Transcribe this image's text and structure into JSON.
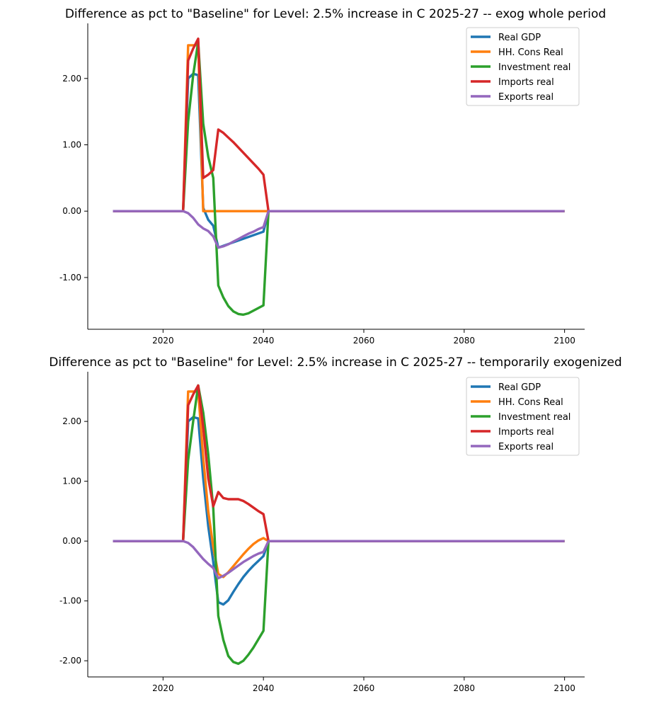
{
  "chart_data": [
    {
      "type": "line",
      "title": "Difference as pct to \"Baseline\" for Level: 2.5% increase in C 2025-27 -- exog whole period",
      "xlabel": "",
      "ylabel": "",
      "xlim": [
        2005,
        2104
      ],
      "ylim": [
        -1.78,
        2.83
      ],
      "xticks": [
        2020,
        2040,
        2060,
        2080,
        2100
      ],
      "yticks": [
        -1.0,
        0.0,
        1.0,
        2.0
      ],
      "ytick_labels": [
        "-1.00",
        "0.00",
        "1.00",
        "2.00"
      ],
      "legend_position": "top-right",
      "grid": false,
      "series": [
        {
          "name": "Real GDP",
          "color": "#1f77b4",
          "x": [
            2010,
            2024,
            2025,
            2026,
            2027,
            2028,
            2029,
            2030,
            2031,
            2040,
            2041,
            2100
          ],
          "y": [
            0,
            0,
            2.0,
            2.07,
            2.05,
            0.05,
            -0.13,
            -0.22,
            -0.55,
            -0.31,
            0,
            0
          ]
        },
        {
          "name": "HH. Cons Real",
          "color": "#ff7f0e",
          "x": [
            2010,
            2024,
            2025,
            2026,
            2027,
            2028,
            2100
          ],
          "y": [
            0,
            0,
            2.5,
            2.5,
            2.5,
            0,
            0
          ]
        },
        {
          "name": "Investment real",
          "color": "#2ca02c",
          "x": [
            2010,
            2024,
            2025,
            2026,
            2027,
            2028,
            2029,
            2030,
            2031,
            2032,
            2033,
            2034,
            2035,
            2036,
            2037,
            2038,
            2039,
            2040,
            2041,
            2100
          ],
          "y": [
            0,
            0,
            1.35,
            2.05,
            2.55,
            1.32,
            0.82,
            0.5,
            -1.12,
            -1.3,
            -1.43,
            -1.51,
            -1.55,
            -1.56,
            -1.54,
            -1.5,
            -1.46,
            -1.42,
            0,
            0
          ]
        },
        {
          "name": "Imports real",
          "color": "#d62728",
          "x": [
            2010,
            2024,
            2025,
            2026,
            2027,
            2028,
            2029,
            2030,
            2031,
            2032,
            2033,
            2034,
            2035,
            2036,
            2037,
            2038,
            2039,
            2040,
            2041,
            2100
          ],
          "y": [
            0,
            0,
            2.27,
            2.45,
            2.6,
            0.5,
            0.55,
            0.62,
            1.23,
            1.18,
            1.11,
            1.04,
            0.96,
            0.88,
            0.8,
            0.72,
            0.64,
            0.55,
            0,
            0
          ]
        },
        {
          "name": "Exports real",
          "color": "#9467bd",
          "x": [
            2010,
            2024,
            2025,
            2026,
            2027,
            2028,
            2029,
            2030,
            2031,
            2032,
            2033,
            2034,
            2035,
            2036,
            2037,
            2038,
            2039,
            2040,
            2041,
            2100
          ],
          "y": [
            0,
            0,
            -0.03,
            -0.1,
            -0.2,
            -0.26,
            -0.3,
            -0.38,
            -0.55,
            -0.53,
            -0.5,
            -0.46,
            -0.42,
            -0.38,
            -0.34,
            -0.31,
            -0.27,
            -0.24,
            0,
            0
          ]
        }
      ]
    },
    {
      "type": "line",
      "title": "Difference as pct to \"Baseline\" for Level: 2.5% increase in C 2025-27 -- temporarily exogenized",
      "xlabel": "",
      "ylabel": "",
      "xlim": [
        2005,
        2104
      ],
      "ylim": [
        -2.27,
        2.83
      ],
      "xticks": [
        2020,
        2040,
        2060,
        2080,
        2100
      ],
      "yticks": [
        -2.0,
        -1.0,
        0.0,
        1.0,
        2.0
      ],
      "ytick_labels": [
        "-2.00",
        "-1.00",
        "0.00",
        "1.00",
        "2.00"
      ],
      "legend_position": "top-right",
      "grid": false,
      "series": [
        {
          "name": "Real GDP",
          "color": "#1f77b4",
          "x": [
            2010,
            2024,
            2025,
            2026,
            2027,
            2028,
            2029,
            2030,
            2031,
            2032,
            2033,
            2034,
            2035,
            2036,
            2037,
            2038,
            2039,
            2040,
            2041,
            2100
          ],
          "y": [
            0,
            0,
            2.0,
            2.07,
            2.05,
            1.05,
            0.25,
            -0.35,
            -1.02,
            -1.06,
            -0.99,
            -0.85,
            -0.72,
            -0.6,
            -0.5,
            -0.41,
            -0.33,
            -0.25,
            0,
            0
          ]
        },
        {
          "name": "HH. Cons Real",
          "color": "#ff7f0e",
          "x": [
            2010,
            2024,
            2025,
            2026,
            2027,
            2028,
            2029,
            2030,
            2031,
            2032,
            2033,
            2034,
            2035,
            2036,
            2037,
            2038,
            2039,
            2040,
            2041,
            2100
          ],
          "y": [
            0,
            0,
            2.5,
            2.5,
            2.5,
            1.4,
            0.5,
            -0.1,
            -0.55,
            -0.6,
            -0.52,
            -0.42,
            -0.32,
            -0.22,
            -0.13,
            -0.05,
            0.01,
            0.05,
            0,
            0
          ]
        },
        {
          "name": "Investment real",
          "color": "#2ca02c",
          "x": [
            2010,
            2024,
            2025,
            2026,
            2027,
            2028,
            2029,
            2030,
            2031,
            2032,
            2033,
            2034,
            2035,
            2036,
            2037,
            2038,
            2039,
            2040,
            2041,
            2100
          ],
          "y": [
            0,
            0,
            1.35,
            2.0,
            2.6,
            2.15,
            1.45,
            0.55,
            -1.25,
            -1.65,
            -1.92,
            -2.02,
            -2.05,
            -2.0,
            -1.9,
            -1.78,
            -1.64,
            -1.5,
            0,
            0
          ]
        },
        {
          "name": "Imports real",
          "color": "#d62728",
          "x": [
            2010,
            2024,
            2025,
            2026,
            2027,
            2028,
            2029,
            2030,
            2031,
            2032,
            2033,
            2034,
            2035,
            2036,
            2037,
            2038,
            2039,
            2040,
            2041,
            2100
          ],
          "y": [
            0,
            0,
            2.27,
            2.45,
            2.6,
            1.9,
            1.05,
            0.58,
            0.82,
            0.72,
            0.7,
            0.7,
            0.7,
            0.67,
            0.62,
            0.56,
            0.5,
            0.45,
            0,
            0
          ]
        },
        {
          "name": "Exports real",
          "color": "#9467bd",
          "x": [
            2010,
            2024,
            2025,
            2026,
            2027,
            2028,
            2029,
            2030,
            2031,
            2032,
            2033,
            2034,
            2035,
            2036,
            2037,
            2038,
            2039,
            2040,
            2041,
            2100
          ],
          "y": [
            0,
            0,
            -0.03,
            -0.1,
            -0.2,
            -0.3,
            -0.38,
            -0.45,
            -0.62,
            -0.58,
            -0.53,
            -0.47,
            -0.41,
            -0.35,
            -0.3,
            -0.25,
            -0.21,
            -0.18,
            0,
            0
          ]
        }
      ]
    }
  ]
}
